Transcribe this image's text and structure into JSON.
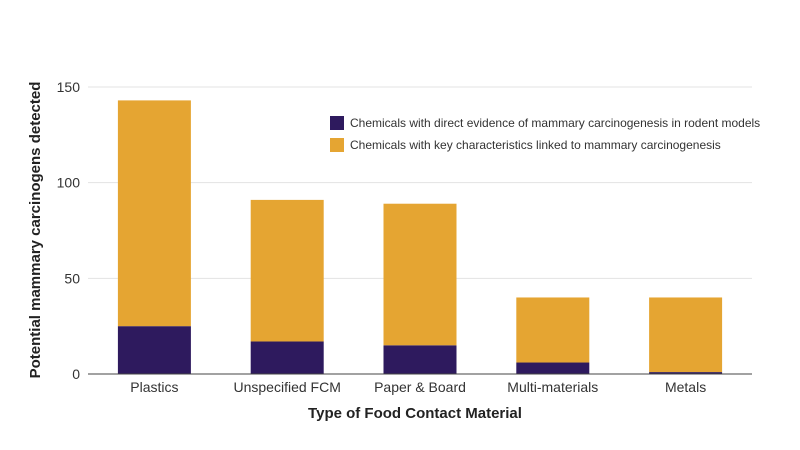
{
  "chart_data": {
    "type": "bar",
    "stacked": true,
    "categories": [
      "Plastics",
      "Unspecified FCM",
      "Paper & Board",
      "Multi-materials",
      "Metals"
    ],
    "series": [
      {
        "name": "Chemicals with direct evidence of mammary carcinogenesis in rodent models",
        "color": "#2e1a5e",
        "values": [
          25,
          17,
          15,
          6,
          1
        ]
      },
      {
        "name": "Chemicals with key characteristics linked to mammary carcinogenesis",
        "color": "#e5a532",
        "values": [
          118,
          74,
          74,
          34,
          39
        ]
      }
    ],
    "xlabel": "Type of Food Contact Material",
    "ylabel": "Potential mammary carcinogens detected",
    "ylim": [
      0,
      150
    ],
    "yticks": [
      0,
      50,
      100,
      150
    ],
    "grid": true,
    "legend_position": "top-right"
  }
}
